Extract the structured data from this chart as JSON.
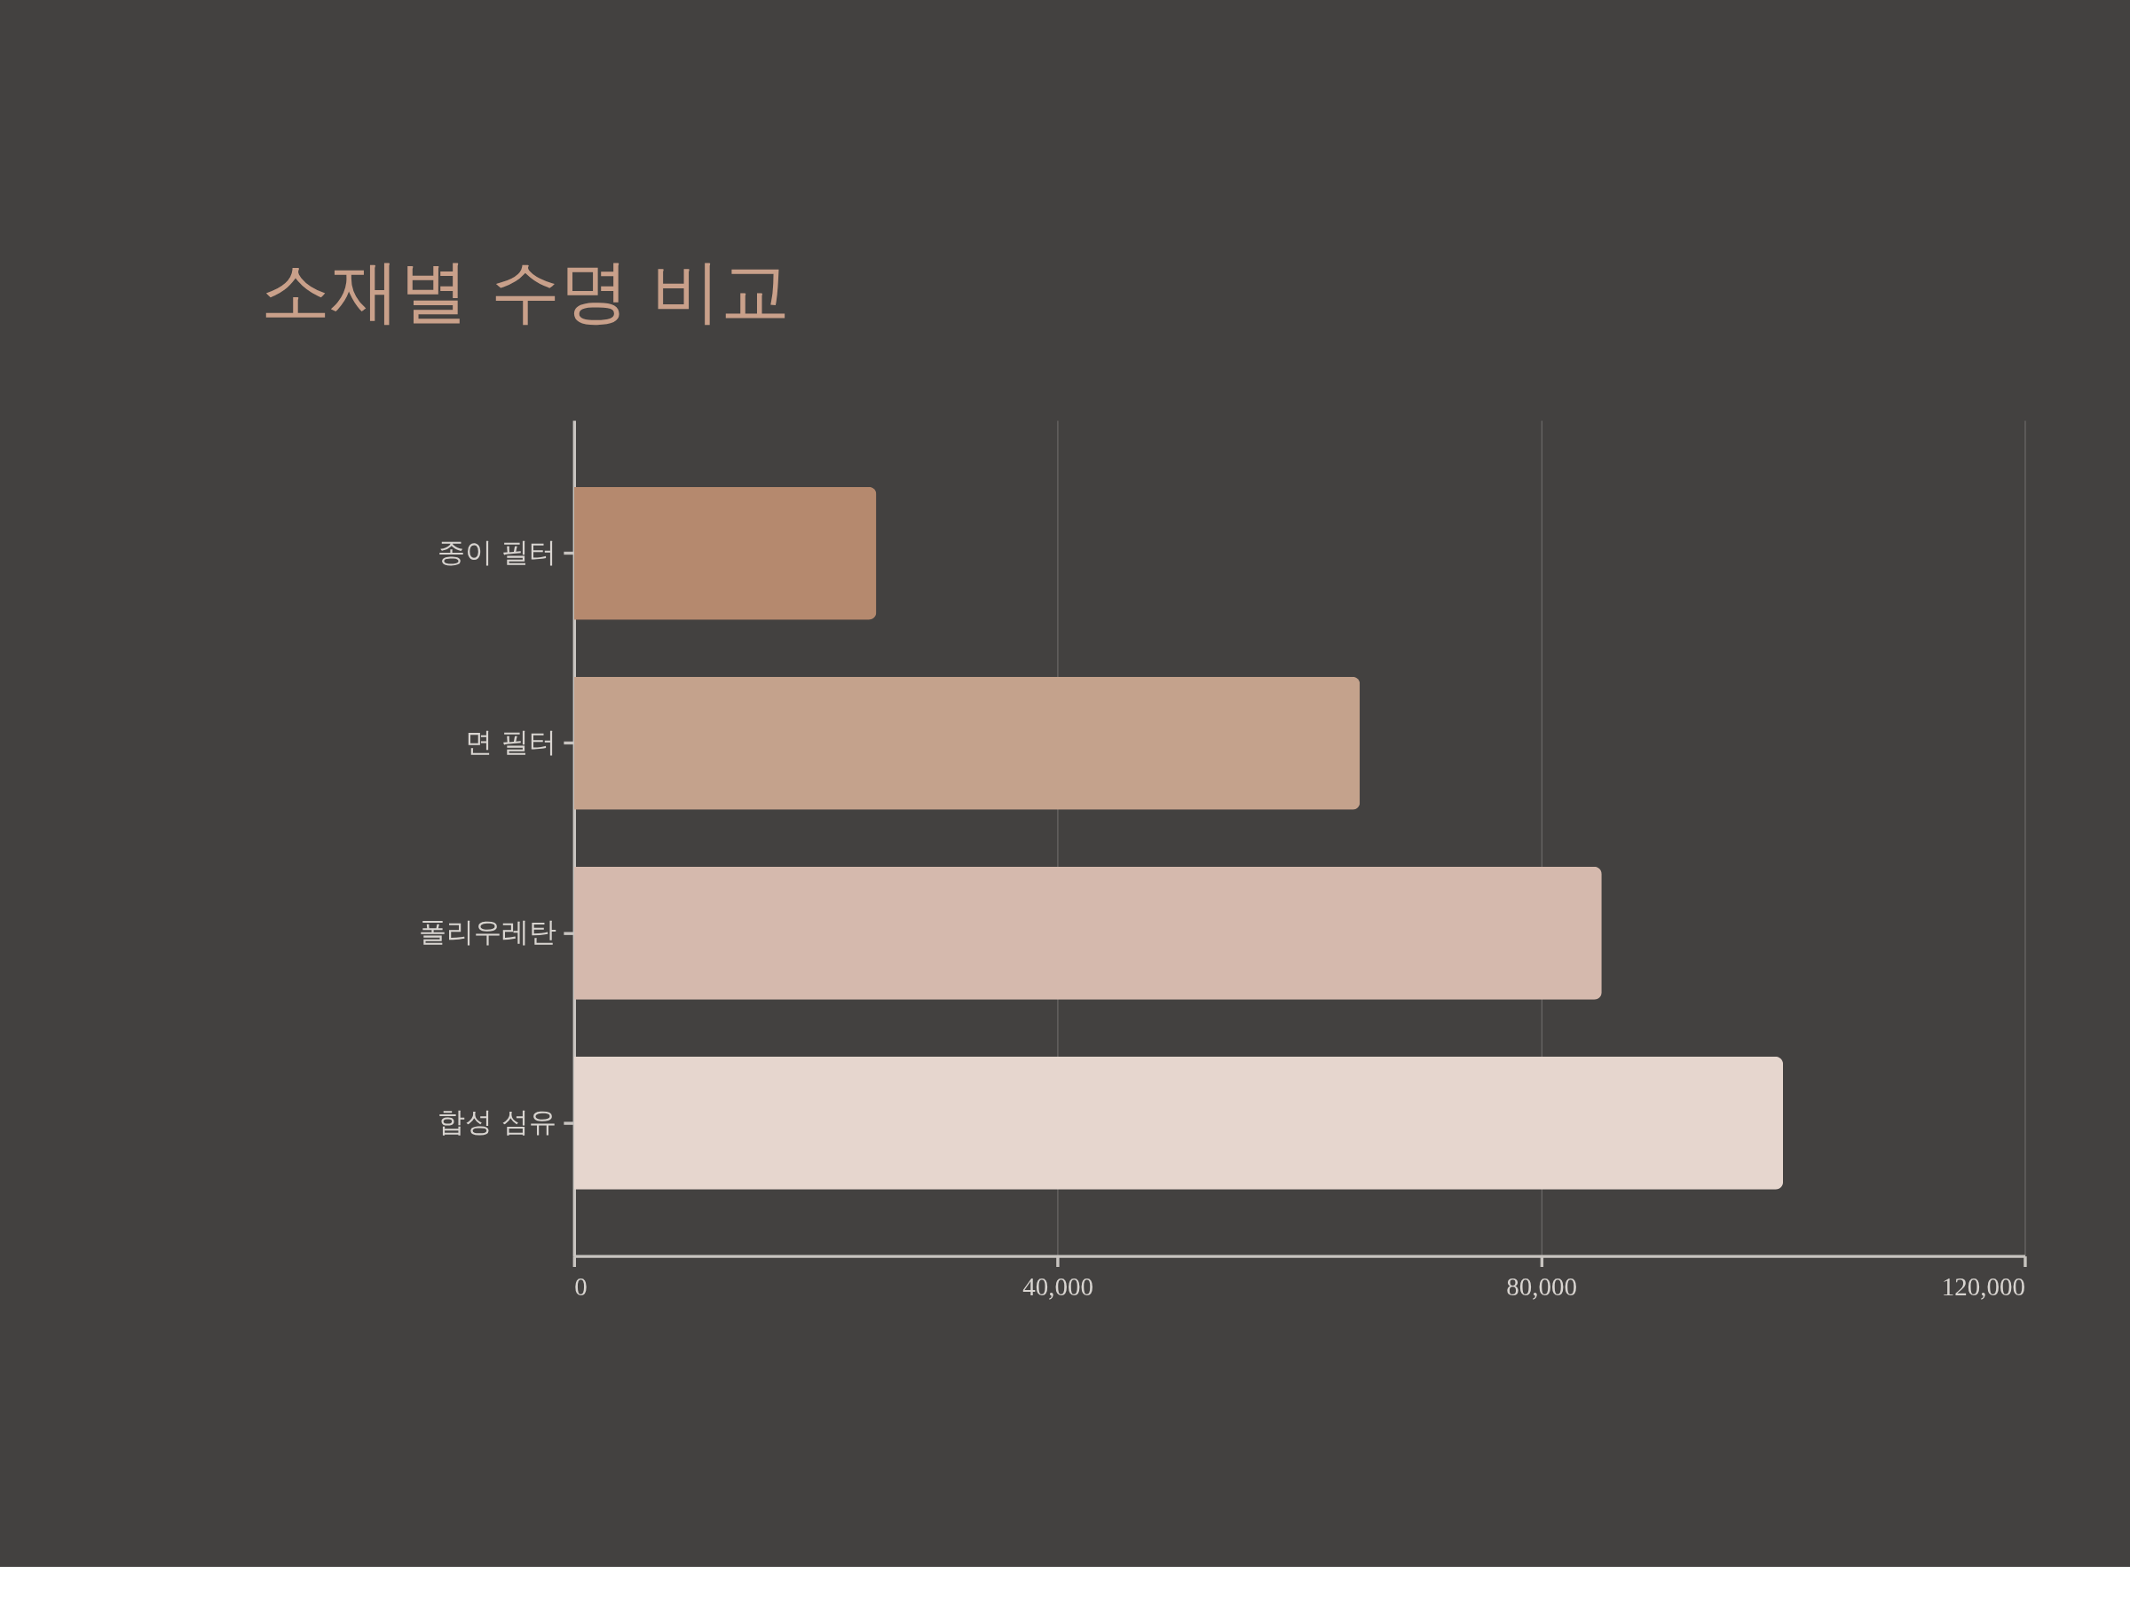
{
  "chart_data": {
    "type": "bar",
    "orientation": "horizontal",
    "title": "소재별 수명 비교",
    "categories": [
      "종이 필터",
      "면 필터",
      "폴리우레탄",
      "합성 섬유"
    ],
    "values": [
      25000,
      65000,
      85000,
      100000
    ],
    "colors": [
      "#b5896e",
      "#c4a28c",
      "#d5b9ad",
      "#e6d6ce"
    ],
    "xlim": [
      0,
      120000
    ],
    "xticks": [
      {
        "value": 0,
        "label": "0"
      },
      {
        "value": 40000,
        "label": "40,000"
      },
      {
        "value": 80000,
        "label": "80,000"
      },
      {
        "value": 120000,
        "label": "120,000"
      }
    ],
    "grid": "x",
    "legend": false
  }
}
